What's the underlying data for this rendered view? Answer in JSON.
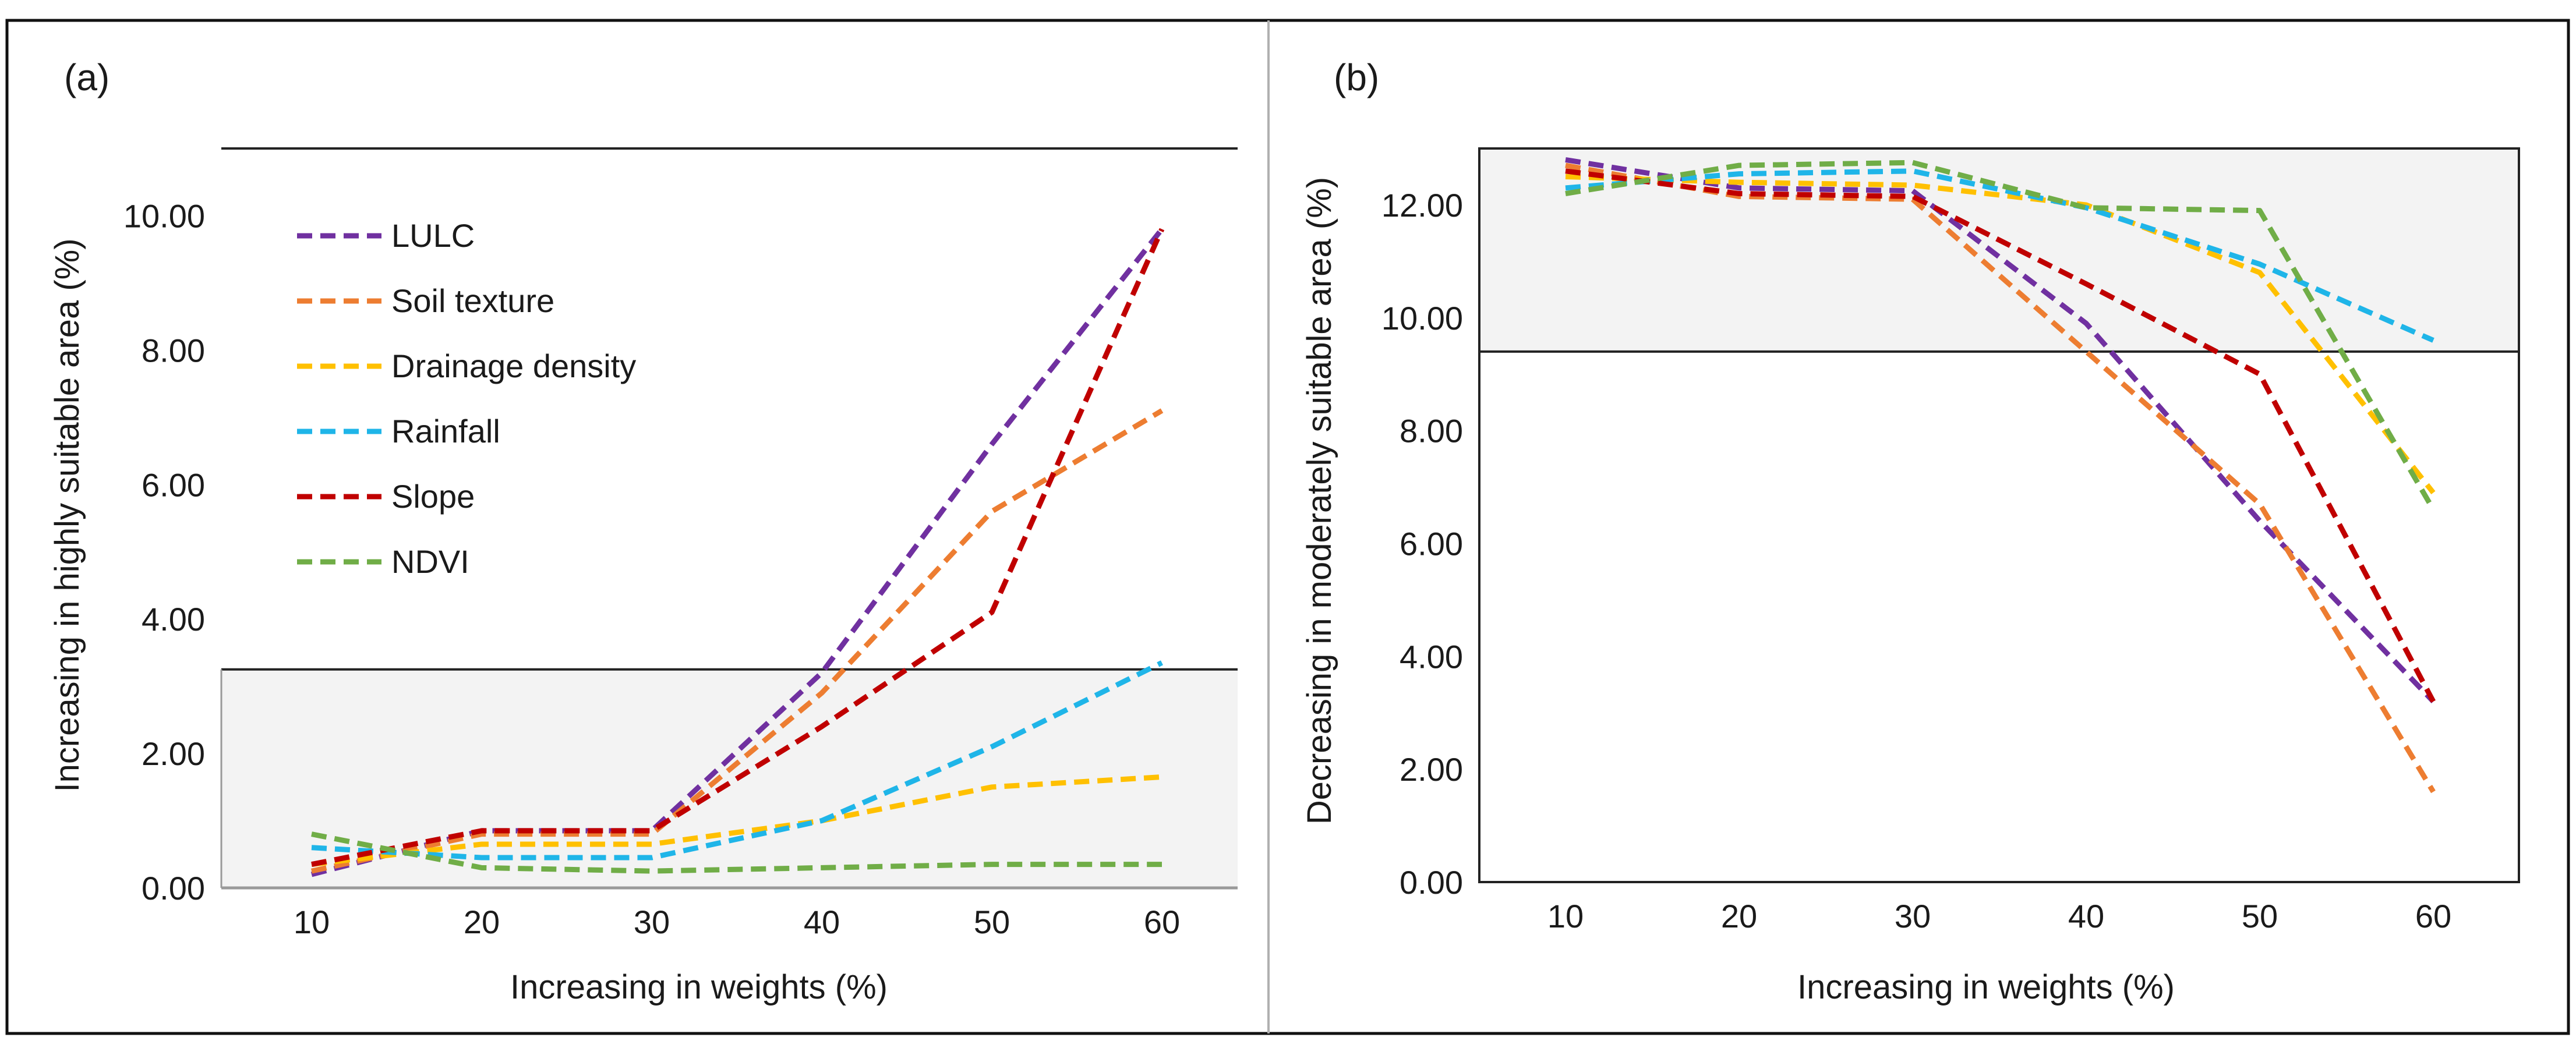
{
  "chart_data": [
    {
      "type": "line",
      "panel_label": "(a)",
      "xlabel": "Increasing in weights (%)",
      "ylabel": "Increasing in highly suitable area (%)",
      "categories": [
        "10",
        "20",
        "30",
        "40",
        "50",
        "60"
      ],
      "ylim": [
        0,
        11
      ],
      "yticks": [
        "0.00",
        "2.00",
        "4.00",
        "6.00",
        "8.00",
        "10.00"
      ],
      "legend_position": "top-left",
      "series": [
        {
          "name": "LULC",
          "color": "#7030A0",
          "values": [
            0.2,
            0.85,
            0.85,
            3.2,
            6.6,
            9.8
          ]
        },
        {
          "name": "Soil texture",
          "color": "#ED7D31",
          "values": [
            0.25,
            0.8,
            0.8,
            2.9,
            5.6,
            7.1
          ]
        },
        {
          "name": "Drainage density",
          "color": "#FFC000",
          "values": [
            0.35,
            0.65,
            0.65,
            1.0,
            1.5,
            1.65
          ]
        },
        {
          "name": "Rainfall",
          "color": "#1FB5E8",
          "values": [
            0.6,
            0.45,
            0.45,
            1.0,
            2.1,
            3.35
          ]
        },
        {
          "name": "Slope",
          "color": "#C00000",
          "values": [
            0.35,
            0.85,
            0.85,
            2.4,
            4.1,
            9.8
          ]
        },
        {
          "name": "NDVI",
          "color": "#70AD47",
          "values": [
            0.8,
            0.3,
            0.25,
            0.3,
            0.35,
            0.35
          ]
        }
      ],
      "shaded_band": [
        0,
        3.25
      ]
    },
    {
      "type": "line",
      "panel_label": "(b)",
      "xlabel": "Increasing in weights (%)",
      "ylabel": "Decreasing in moderately suitable  area (%)",
      "categories": [
        "10",
        "20",
        "30",
        "40",
        "50",
        "60"
      ],
      "ylim": [
        0,
        13
      ],
      "yticks": [
        "0.00",
        "2.00",
        "4.00",
        "6.00",
        "8.00",
        "10.00",
        "12.00"
      ],
      "series": [
        {
          "name": "LULC",
          "color": "#7030A0",
          "values": [
            12.8,
            12.3,
            12.25,
            9.9,
            6.4,
            3.2
          ]
        },
        {
          "name": "Soil texture",
          "color": "#ED7D31",
          "values": [
            12.7,
            12.15,
            12.1,
            9.4,
            6.7,
            1.6
          ]
        },
        {
          "name": "Drainage density",
          "color": "#FFC000",
          "values": [
            12.5,
            12.4,
            12.35,
            12.0,
            10.8,
            6.9
          ]
        },
        {
          "name": "Rainfall",
          "color": "#1FB5E8",
          "values": [
            12.3,
            12.55,
            12.6,
            11.95,
            10.95,
            9.6
          ]
        },
        {
          "name": "Slope",
          "color": "#C00000",
          "values": [
            12.6,
            12.2,
            12.15,
            10.6,
            9.0,
            3.2
          ]
        },
        {
          "name": "NDVI",
          "color": "#70AD47",
          "values": [
            12.2,
            12.7,
            12.75,
            11.95,
            11.9,
            6.6
          ]
        }
      ],
      "shaded_band": [
        9.4,
        13
      ]
    }
  ]
}
